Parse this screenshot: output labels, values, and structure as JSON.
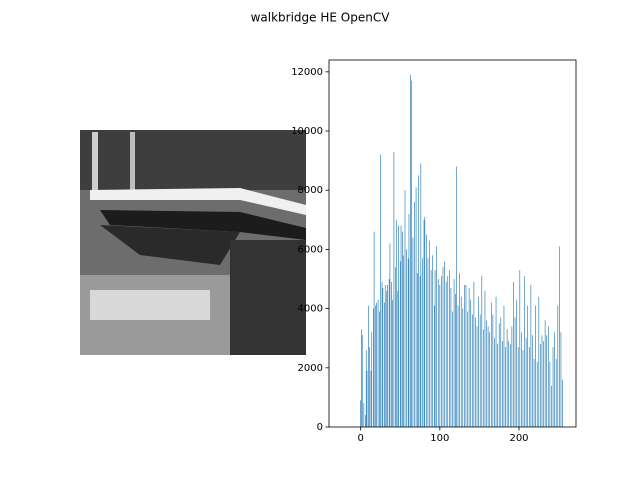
{
  "chart_data": {
    "type": "bar",
    "title": "walkbridge HE OpenCV",
    "color": "#1f77b4",
    "bar_width": 0.8,
    "x": [
      0,
      1,
      2,
      3,
      4,
      5,
      6,
      7,
      8,
      9,
      10,
      11,
      12,
      13,
      14,
      15,
      16,
      17,
      18,
      19,
      20,
      21,
      22,
      23,
      24,
      25,
      26,
      27,
      28,
      29,
      30,
      31,
      32,
      33,
      34,
      35,
      36,
      37,
      38,
      39,
      40,
      41,
      42,
      43,
      44,
      45,
      46,
      47,
      48,
      49,
      50,
      51,
      52,
      53,
      54,
      55,
      56,
      57,
      58,
      59,
      60,
      61,
      62,
      63,
      64,
      65,
      66,
      67,
      68,
      69,
      70,
      71,
      72,
      73,
      74,
      75,
      76,
      77,
      78,
      79,
      80,
      81,
      82,
      83,
      84,
      85,
      86,
      87,
      88,
      89,
      90,
      91,
      92,
      93,
      94,
      95,
      96,
      97,
      98,
      99,
      100,
      101,
      102,
      103,
      104,
      105,
      106,
      107,
      108,
      109,
      110,
      111,
      112,
      113,
      114,
      115,
      116,
      117,
      118,
      119,
      120,
      121,
      122,
      123,
      124,
      125,
      126,
      127,
      128,
      129,
      130,
      131,
      132,
      133,
      134,
      135,
      136,
      137,
      138,
      139,
      140,
      141,
      142,
      143,
      144,
      145,
      146,
      147,
      148,
      149,
      150,
      151,
      152,
      153,
      154,
      155,
      156,
      157,
      158,
      159,
      160,
      161,
      162,
      163,
      164,
      165,
      166,
      167,
      168,
      169,
      170,
      171,
      172,
      173,
      174,
      175,
      176,
      177,
      178,
      179,
      180,
      181,
      182,
      183,
      184,
      185,
      186,
      187,
      188,
      189,
      190,
      191,
      192,
      193,
      194,
      195,
      196,
      197,
      198,
      199,
      200,
      201,
      202,
      203,
      204,
      205,
      206,
      207,
      208,
      209,
      210,
      211,
      212,
      213,
      214,
      215,
      216,
      217,
      218,
      219,
      220,
      221,
      222,
      223,
      224,
      225,
      226,
      227,
      228,
      229,
      230,
      231,
      232,
      233,
      234,
      235,
      236,
      237,
      238,
      239,
      240,
      241,
      242,
      243,
      244,
      245,
      246,
      247,
      248,
      249,
      250,
      251,
      252,
      253,
      254,
      255
    ],
    "values": [
      900,
      3300,
      3100,
      0,
      800,
      0,
      400,
      2600,
      1900,
      0,
      4100,
      2700,
      0,
      1900,
      3200,
      0,
      4000,
      6600,
      0,
      4100,
      4200,
      0,
      4300,
      0,
      3900,
      9200,
      0,
      4900,
      4700,
      0,
      4200,
      4800,
      0,
      4600,
      4800,
      0,
      5000,
      6200,
      0,
      4900,
      4300,
      0,
      9300,
      0,
      5400,
      7000,
      0,
      4600,
      6800,
      0,
      5600,
      6800,
      0,
      6600,
      5800,
      0,
      8000,
      0,
      6000,
      0,
      5700,
      7200,
      0,
      11900,
      11700,
      0,
      6400,
      0,
      7600,
      0,
      8100,
      0,
      5200,
      8500,
      0,
      5100,
      8900,
      0,
      5700,
      0,
      7000,
      7100,
      0,
      6500,
      0,
      5700,
      0,
      6300,
      0,
      5300,
      0,
      5800,
      0,
      4100,
      5300,
      0,
      6100,
      0,
      5000,
      0,
      4800,
      0,
      5100,
      0,
      5400,
      0,
      5600,
      0,
      4900,
      0,
      5100,
      0,
      5300,
      0,
      4700,
      0,
      3900,
      0,
      5000,
      0,
      4500,
      8800,
      0,
      4100,
      0,
      5200,
      0,
      4400,
      0,
      4000,
      0,
      4800,
      0,
      4800,
      0,
      3900,
      0,
      4700,
      0,
      4300,
      0,
      3800,
      0,
      4900,
      0,
      3700,
      0,
      3400,
      0,
      4400,
      0,
      3800,
      0,
      5100,
      0,
      3300,
      0,
      4600,
      0,
      3600,
      0,
      3400,
      0,
      3200,
      0,
      4200,
      0,
      3800,
      0,
      3000,
      0,
      4400,
      0,
      2800,
      0,
      3500,
      0,
      3700,
      0,
      2900,
      0,
      4100,
      0,
      2700,
      0,
      3300,
      0,
      2900,
      0,
      2800,
      0,
      3400,
      0,
      4900,
      0,
      3700,
      0,
      4300,
      0,
      2700,
      0,
      5300,
      0,
      3200,
      0,
      2600,
      0,
      5100,
      0,
      3000,
      0,
      4100,
      0,
      2700,
      0,
      4800,
      0,
      3100,
      0,
      2300,
      0,
      4100,
      0,
      2200,
      0,
      4400,
      0,
      2800,
      0,
      3100,
      0,
      2900,
      0,
      3600,
      0,
      3100,
      0,
      3400,
      0,
      2200,
      0,
      1400,
      0,
      2700,
      0,
      3200,
      0,
      2300,
      0,
      4100,
      0,
      6100,
      0,
      3200,
      0,
      1600
    ],
    "xlim": [
      -40,
      272
    ],
    "xticks": [
      0,
      100,
      200
    ],
    "ylim": [
      0,
      12400
    ],
    "yticks": [
      0,
      2000,
      4000,
      6000,
      8000,
      10000,
      12000
    ]
  }
}
